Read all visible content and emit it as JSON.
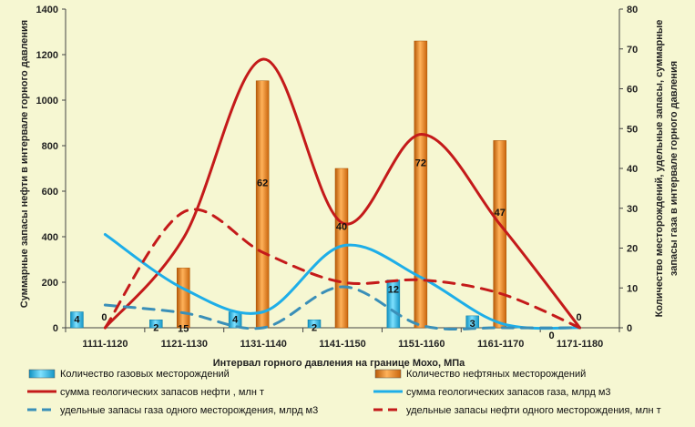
{
  "chart_data": {
    "type": "bar",
    "title": "",
    "xlabel": "Интервал горного давления на границе Мохо, МПа",
    "ylabel": "Суммарные запасы нефти в интервале горного давления",
    "y2label_line1": "Количество месторождений, удельные запасы, суммарные",
    "y2label_line2": "запасы газа в интервале горного давления",
    "ylim": [
      0,
      1400
    ],
    "y_ticks": [
      "0",
      "200",
      "400",
      "600",
      "800",
      "1000",
      "1200",
      "1400"
    ],
    "y2lim": [
      0,
      80
    ],
    "y2_ticks": [
      "0",
      "10",
      "20",
      "30",
      "40",
      "50",
      "60",
      "70",
      "80"
    ],
    "categories": [
      "1111-1120",
      "1121-1130",
      "1131-1140",
      "1141-1150",
      "1151-1160",
      "1161-1170",
      "1171-1180"
    ],
    "series": [
      {
        "name": "Количество газовых месторождений",
        "kind": "bar",
        "axis": "right",
        "color": "#29c4f0",
        "values": [
          4,
          2,
          4,
          2,
          12,
          3,
          0
        ],
        "labels": [
          "4",
          "2",
          "4",
          "2",
          "12",
          "3",
          "0"
        ]
      },
      {
        "name": "Количество нефтяных месторождений",
        "kind": "bar",
        "axis": "right",
        "color": "#f08a1c",
        "values": [
          0,
          15,
          62,
          40,
          72,
          47,
          0
        ],
        "labels": [
          "0",
          "15",
          "62",
          "40",
          "72",
          "47",
          "0"
        ]
      },
      {
        "name": "сумма геологических запасов нефти , млн т",
        "kind": "line",
        "axis": "left",
        "color": "#c41a1a",
        "dash": "solid",
        "values": [
          0,
          400,
          1180,
          460,
          850,
          450,
          0
        ]
      },
      {
        "name": "сумма геологических запасов газа, млрд  м3",
        "kind": "line",
        "axis": "left",
        "color": "#1eaee8",
        "dash": "solid",
        "values": [
          410,
          170,
          70,
          360,
          220,
          20,
          0
        ]
      },
      {
        "name": "удельные запасы газа одного месторождения, млрд м3",
        "kind": "line",
        "axis": "left",
        "color": "#3a8fb8",
        "dash": "dash",
        "values": [
          100,
          65,
          0,
          180,
          10,
          0,
          0
        ]
      },
      {
        "name": "удельные запасы нефти одного месторождения, млн т",
        "kind": "line",
        "axis": "left",
        "color": "#c41a1a",
        "dash": "dash",
        "values": [
          0,
          510,
          330,
          200,
          210,
          150,
          0
        ]
      }
    ],
    "legend_position": "bottom"
  }
}
